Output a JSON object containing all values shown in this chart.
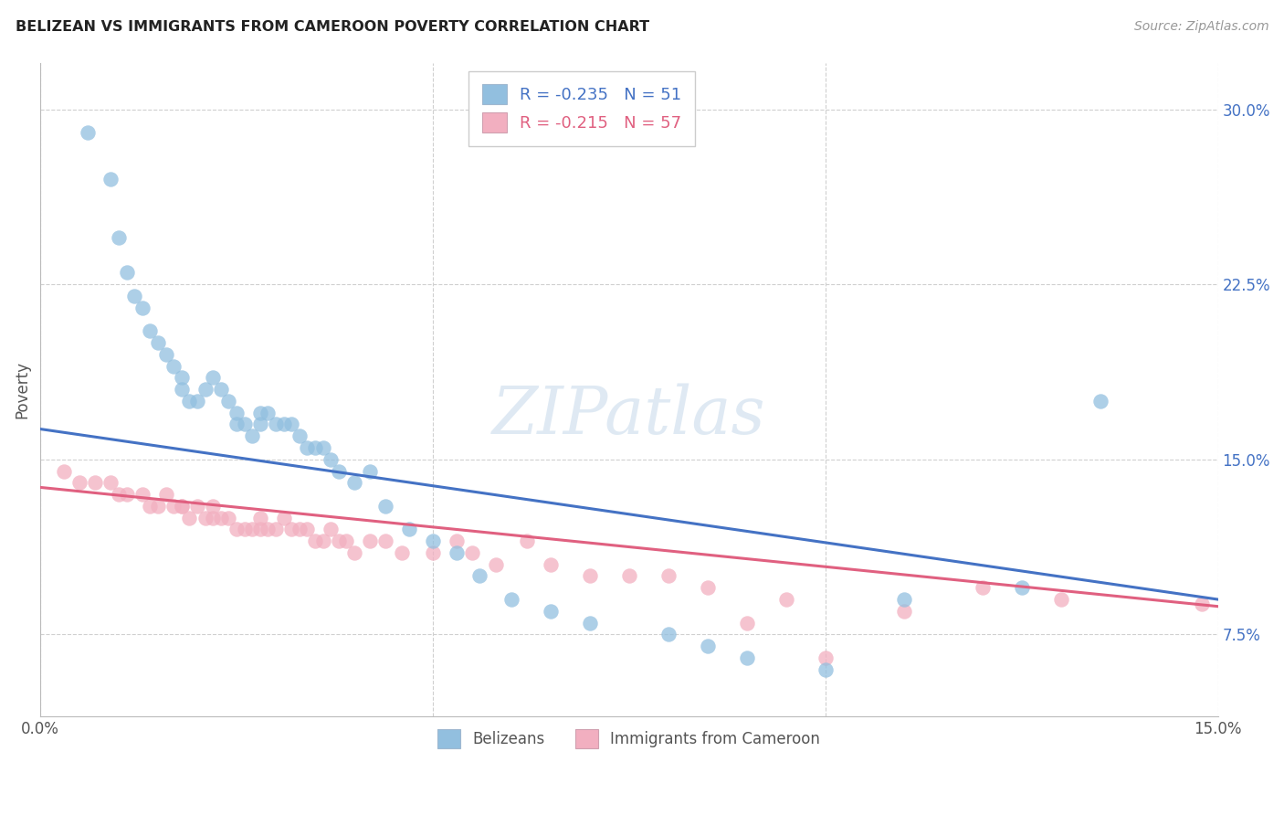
{
  "title": "BELIZEAN VS IMMIGRANTS FROM CAMEROON POVERTY CORRELATION CHART",
  "source": "Source: ZipAtlas.com",
  "ylabel": "Poverty",
  "blue_label": "Belizeans",
  "pink_label": "Immigrants from Cameroon",
  "blue_R": -0.235,
  "blue_N": 51,
  "pink_R": -0.215,
  "pink_N": 57,
  "blue_color": "#92bfdf",
  "pink_color": "#f2afc0",
  "blue_line_color": "#4472c4",
  "pink_line_color": "#e06080",
  "background_color": "#ffffff",
  "grid_color": "#d0d0d0",
  "x_min": 0.0,
  "x_max": 0.15,
  "y_min": 0.04,
  "y_max": 0.32,
  "y_ticks": [
    0.075,
    0.15,
    0.225,
    0.3
  ],
  "y_tick_labels": [
    "7.5%",
    "15.0%",
    "22.5%",
    "30.0%"
  ],
  "x_ticks": [
    0.0,
    0.15
  ],
  "x_tick_labels": [
    "0.0%",
    "15.0%"
  ],
  "blue_line_x0": 0.0,
  "blue_line_y0": 0.163,
  "blue_line_x1": 0.15,
  "blue_line_y1": 0.09,
  "pink_line_x0": 0.0,
  "pink_line_y0": 0.138,
  "pink_line_x1": 0.15,
  "pink_line_y1": 0.087,
  "blue_x": [
    0.006,
    0.009,
    0.01,
    0.011,
    0.012,
    0.013,
    0.014,
    0.015,
    0.016,
    0.017,
    0.018,
    0.018,
    0.019,
    0.02,
    0.021,
    0.022,
    0.023,
    0.024,
    0.025,
    0.025,
    0.026,
    0.027,
    0.028,
    0.028,
    0.029,
    0.03,
    0.031,
    0.032,
    0.033,
    0.034,
    0.035,
    0.036,
    0.037,
    0.038,
    0.04,
    0.042,
    0.044,
    0.047,
    0.05,
    0.053,
    0.056,
    0.06,
    0.065,
    0.07,
    0.08,
    0.085,
    0.09,
    0.1,
    0.11,
    0.125,
    0.135
  ],
  "blue_y": [
    0.29,
    0.27,
    0.245,
    0.23,
    0.22,
    0.215,
    0.205,
    0.2,
    0.195,
    0.19,
    0.185,
    0.18,
    0.175,
    0.175,
    0.18,
    0.185,
    0.18,
    0.175,
    0.17,
    0.165,
    0.165,
    0.16,
    0.165,
    0.17,
    0.17,
    0.165,
    0.165,
    0.165,
    0.16,
    0.155,
    0.155,
    0.155,
    0.15,
    0.145,
    0.14,
    0.145,
    0.13,
    0.12,
    0.115,
    0.11,
    0.1,
    0.09,
    0.085,
    0.08,
    0.075,
    0.07,
    0.065,
    0.06,
    0.09,
    0.095,
    0.175
  ],
  "pink_x": [
    0.003,
    0.005,
    0.007,
    0.009,
    0.01,
    0.011,
    0.013,
    0.014,
    0.015,
    0.016,
    0.017,
    0.018,
    0.018,
    0.019,
    0.02,
    0.021,
    0.022,
    0.022,
    0.023,
    0.024,
    0.025,
    0.026,
    0.027,
    0.028,
    0.028,
    0.029,
    0.03,
    0.031,
    0.032,
    0.033,
    0.034,
    0.035,
    0.036,
    0.037,
    0.038,
    0.039,
    0.04,
    0.042,
    0.044,
    0.046,
    0.05,
    0.053,
    0.055,
    0.058,
    0.062,
    0.065,
    0.07,
    0.075,
    0.08,
    0.085,
    0.09,
    0.095,
    0.1,
    0.11,
    0.12,
    0.13,
    0.148
  ],
  "pink_y": [
    0.145,
    0.14,
    0.14,
    0.14,
    0.135,
    0.135,
    0.135,
    0.13,
    0.13,
    0.135,
    0.13,
    0.13,
    0.13,
    0.125,
    0.13,
    0.125,
    0.13,
    0.125,
    0.125,
    0.125,
    0.12,
    0.12,
    0.12,
    0.12,
    0.125,
    0.12,
    0.12,
    0.125,
    0.12,
    0.12,
    0.12,
    0.115,
    0.115,
    0.12,
    0.115,
    0.115,
    0.11,
    0.115,
    0.115,
    0.11,
    0.11,
    0.115,
    0.11,
    0.105,
    0.115,
    0.105,
    0.1,
    0.1,
    0.1,
    0.095,
    0.08,
    0.09,
    0.065,
    0.085,
    0.095,
    0.09,
    0.088
  ]
}
